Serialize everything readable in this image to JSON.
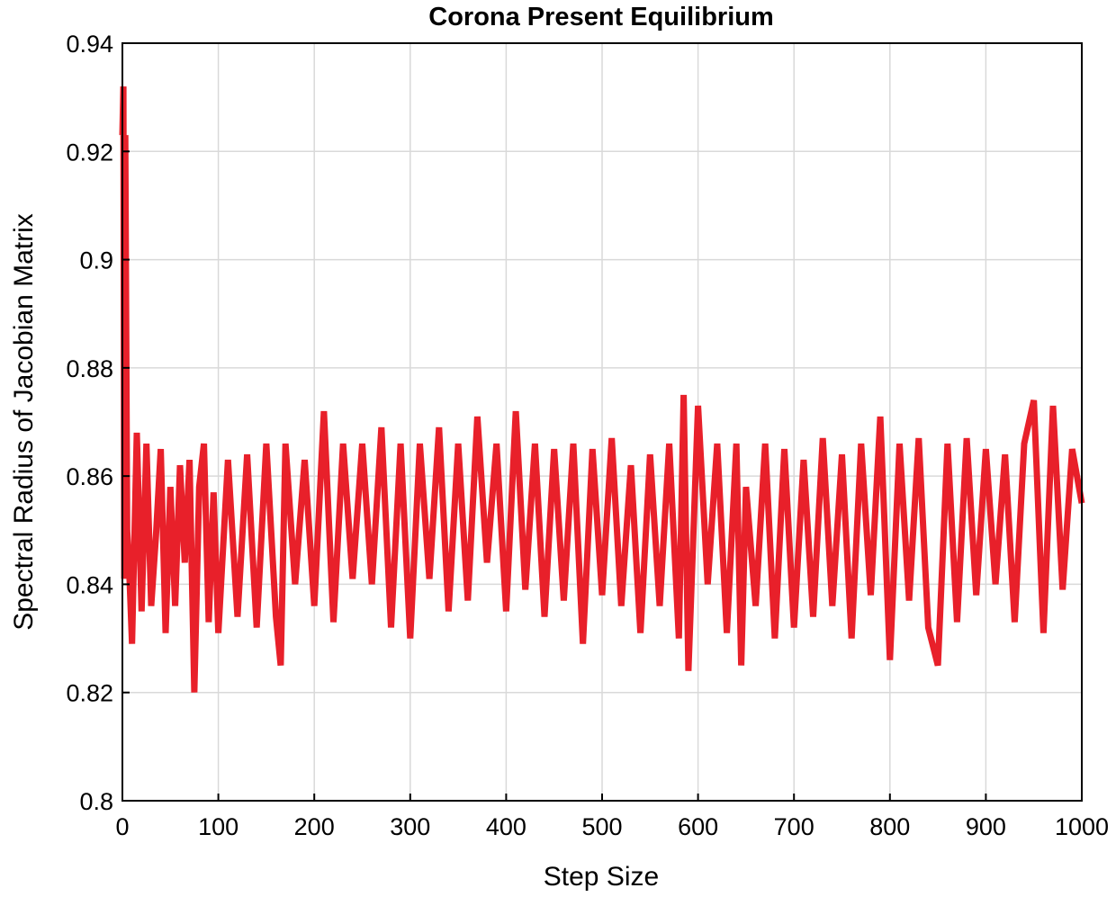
{
  "chart_data": {
    "type": "line",
    "title": "Corona Present Equilibrium",
    "xlabel": "Step Size",
    "ylabel": "Spectral Radius of Jacobian Matrix",
    "xlim": [
      0,
      1000
    ],
    "ylim": [
      0.8,
      0.94
    ],
    "xticks": [
      "0",
      "100",
      "200",
      "300",
      "400",
      "500",
      "600",
      "700",
      "800",
      "900",
      "1000"
    ],
    "yticks": [
      "0.8",
      "0.82",
      "0.84",
      "0.86",
      "0.88",
      "0.9",
      "0.92",
      "0.94"
    ],
    "grid": true,
    "color": "#e8202a",
    "series": [
      {
        "x": [
          0,
          1,
          2,
          3,
          5,
          7,
          10,
          15,
          20,
          25,
          30,
          35,
          40,
          45,
          50,
          55,
          60,
          65,
          70,
          75,
          80,
          85,
          90,
          95,
          100,
          110,
          120,
          130,
          140,
          150,
          160,
          165,
          170,
          180,
          190,
          200,
          210,
          220,
          230,
          240,
          250,
          260,
          270,
          280,
          290,
          300,
          310,
          320,
          330,
          340,
          350,
          360,
          370,
          380,
          390,
          400,
          410,
          420,
          430,
          440,
          450,
          460,
          470,
          480,
          490,
          500,
          510,
          520,
          530,
          540,
          550,
          560,
          570,
          580,
          585,
          590,
          600,
          610,
          620,
          630,
          640,
          645,
          650,
          660,
          670,
          680,
          690,
          700,
          710,
          720,
          730,
          740,
          750,
          760,
          770,
          780,
          790,
          800,
          810,
          820,
          830,
          840,
          850,
          860,
          870,
          880,
          890,
          900,
          910,
          920,
          930,
          940,
          950,
          960,
          970,
          980,
          990,
          1000
        ],
        "y": [
          0.923,
          0.932,
          0.841,
          0.923,
          0.85,
          0.843,
          0.829,
          0.868,
          0.835,
          0.866,
          0.836,
          0.849,
          0.865,
          0.831,
          0.858,
          0.836,
          0.862,
          0.844,
          0.863,
          0.82,
          0.858,
          0.866,
          0.833,
          0.857,
          0.831,
          0.863,
          0.834,
          0.864,
          0.832,
          0.866,
          0.834,
          0.825,
          0.866,
          0.84,
          0.863,
          0.836,
          0.872,
          0.833,
          0.866,
          0.841,
          0.866,
          0.84,
          0.869,
          0.832,
          0.866,
          0.83,
          0.866,
          0.841,
          0.869,
          0.835,
          0.866,
          0.837,
          0.871,
          0.844,
          0.866,
          0.835,
          0.872,
          0.839,
          0.866,
          0.834,
          0.865,
          0.837,
          0.866,
          0.829,
          0.865,
          0.838,
          0.867,
          0.836,
          0.862,
          0.831,
          0.864,
          0.836,
          0.866,
          0.83,
          0.875,
          0.824,
          0.873,
          0.84,
          0.866,
          0.831,
          0.866,
          0.825,
          0.858,
          0.836,
          0.866,
          0.83,
          0.865,
          0.832,
          0.863,
          0.834,
          0.867,
          0.836,
          0.864,
          0.83,
          0.866,
          0.838,
          0.871,
          0.826,
          0.866,
          0.837,
          0.867,
          0.832,
          0.825,
          0.866,
          0.833,
          0.867,
          0.838,
          0.865,
          0.84,
          0.864,
          0.833,
          0.866,
          0.874,
          0.831,
          0.873,
          0.839,
          0.865,
          0.855
        ]
      }
    ]
  }
}
